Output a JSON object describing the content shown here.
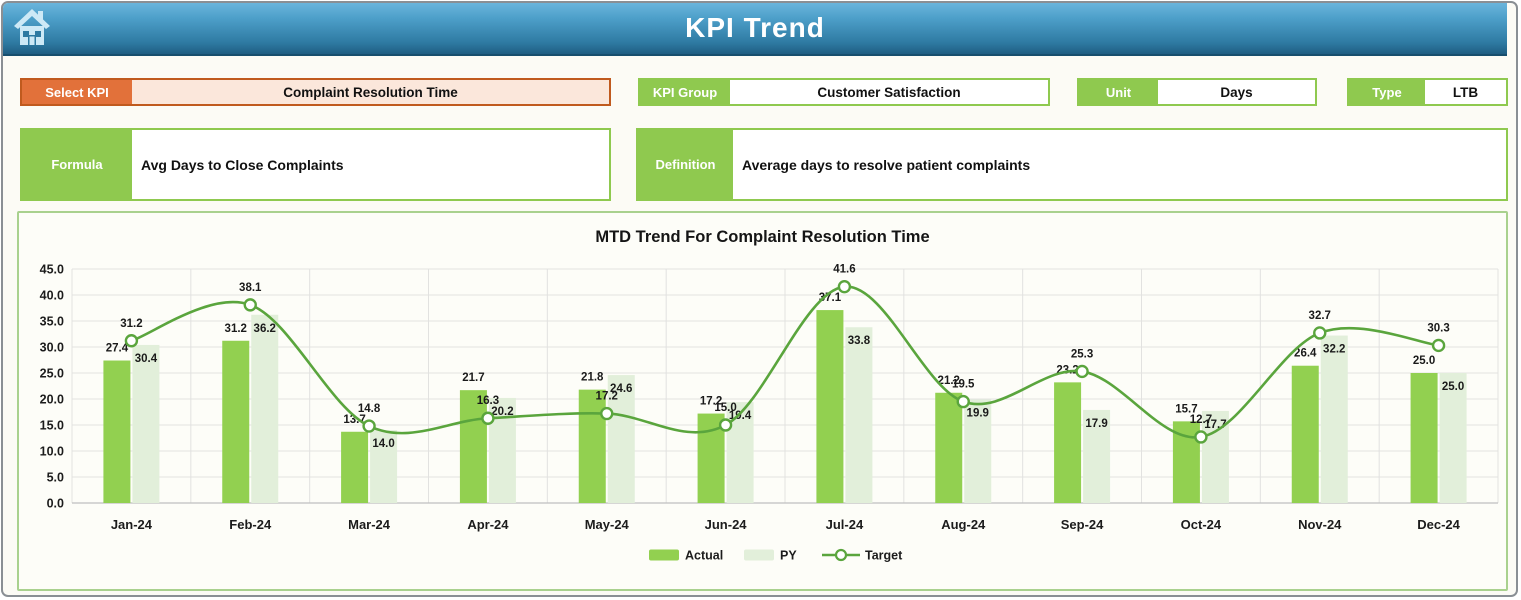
{
  "header": {
    "title": "KPI Trend",
    "home_icon": "home-icon"
  },
  "fields": {
    "select_kpi": {
      "label": "Select KPI",
      "value": "Complaint Resolution Time"
    },
    "kpi_group": {
      "label": "KPI Group",
      "value": "Customer Satisfaction"
    },
    "unit": {
      "label": "Unit",
      "value": "Days"
    },
    "type": {
      "label": "Type",
      "value": "LTB"
    },
    "formula": {
      "label": "Formula",
      "value": "Avg Days to Close Complaints"
    },
    "definition": {
      "label": "Definition",
      "value": "Average days to resolve patient complaints"
    }
  },
  "colors": {
    "accent_orange": "#E2713A",
    "accent_orange_light": "#FBE7DB",
    "accent_green": "#8FC94F",
    "chart_border": "#A9D18E",
    "actual_bar": "#92D050",
    "py_bar": "#E2EFDA",
    "target_line": "#5AA53D",
    "gridline": "#E2E2E0",
    "axis_line": "#C0C0C0",
    "label_text": "#1a1a1a"
  },
  "chart_data": {
    "type": "bar",
    "subtype": "grouped-bars-with-smooth-line",
    "title": "MTD Trend For Complaint Resolution Time",
    "categories": [
      "Jan-24",
      "Feb-24",
      "Mar-24",
      "Apr-24",
      "May-24",
      "Jun-24",
      "Jul-24",
      "Aug-24",
      "Sep-24",
      "Oct-24",
      "Nov-24",
      "Dec-24"
    ],
    "series": [
      {
        "name": "Actual",
        "type": "bar",
        "color": "#92D050",
        "values": [
          27.4,
          31.2,
          13.7,
          21.7,
          21.8,
          17.2,
          37.1,
          21.2,
          23.2,
          15.7,
          26.4,
          25.0
        ]
      },
      {
        "name": "PY",
        "type": "bar",
        "color": "#E2EFDA",
        "values": [
          30.4,
          36.2,
          14.0,
          20.2,
          24.6,
          19.4,
          33.8,
          19.9,
          17.9,
          17.7,
          32.2,
          25.0
        ]
      },
      {
        "name": "Target",
        "type": "line",
        "color": "#5AA53D",
        "values": [
          31.2,
          38.1,
          14.8,
          16.3,
          17.2,
          15.0,
          41.6,
          19.5,
          25.3,
          12.7,
          32.7,
          30.3
        ]
      }
    ],
    "xlabel": "",
    "ylabel": "",
    "ylim": [
      0,
      45
    ],
    "ytick_step": 5,
    "ytick_format": "one-decimal",
    "grid": true,
    "legend_position": "bottom"
  }
}
